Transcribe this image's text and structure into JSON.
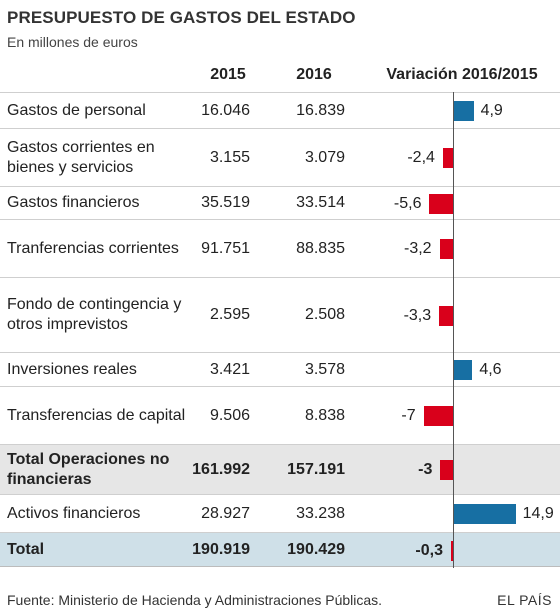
{
  "title": "PRESUPUESTO DE GASTOS DEL ESTADO",
  "subtitle": "En millones de euros",
  "columns": {
    "y2015": "2015",
    "y2016": "2016",
    "variation": "Variación 2016/2015"
  },
  "source": "Fuente: Ministerio de Hacienda y Administraciones Públicas.",
  "brand": "EL PAÍS",
  "colors": {
    "positive": "#176fa3",
    "negative": "#d9001b",
    "shaded_row": "#e6e6e6",
    "total_row": "#cfe0e8"
  },
  "chart_data": {
    "type": "table",
    "variation_axis_type": "bar",
    "variation_range": [
      -7,
      14.9
    ],
    "rows": [
      {
        "label": "Gastos de personal",
        "y2015": "16.046",
        "y2016": "16.839",
        "variation": 4.9,
        "variation_label": "4,9"
      },
      {
        "label": "Gastos corrientes en bienes y servicios",
        "y2015": "3.155",
        "y2016": "3.079",
        "variation": -2.4,
        "variation_label": "-2,4"
      },
      {
        "label": "Gastos financieros",
        "y2015": "35.519",
        "y2016": "33.514",
        "variation": -5.6,
        "variation_label": "-5,6"
      },
      {
        "label": "Tranferencias corrientes",
        "y2015": "91.751",
        "y2016": "88.835",
        "variation": -3.2,
        "variation_label": "-3,2"
      },
      {
        "label": "Fondo de contingencia y otros imprevistos",
        "y2015": "2.595",
        "y2016": "2.508",
        "variation": -3.3,
        "variation_label": "-3,3"
      },
      {
        "label": "Inversiones reales",
        "y2015": "3.421",
        "y2016": "3.578",
        "variation": 4.6,
        "variation_label": "4,6"
      },
      {
        "label": "Transferencias de capital",
        "y2015": "9.506",
        "y2016": "8.838",
        "variation": -7,
        "variation_label": "-7"
      },
      {
        "label": "Total Operaciones no financieras",
        "y2015": "161.992",
        "y2016": "157.191",
        "variation": -3,
        "variation_label": "-3",
        "style": "subtotal"
      },
      {
        "label": "Activos financieros",
        "y2015": "28.927",
        "y2016": "33.238",
        "variation": 14.9,
        "variation_label": "14,9"
      },
      {
        "label": "Total",
        "y2015": "190.919",
        "y2016": "190.429",
        "variation": -0.3,
        "variation_label": "-0,3",
        "style": "total"
      }
    ]
  }
}
